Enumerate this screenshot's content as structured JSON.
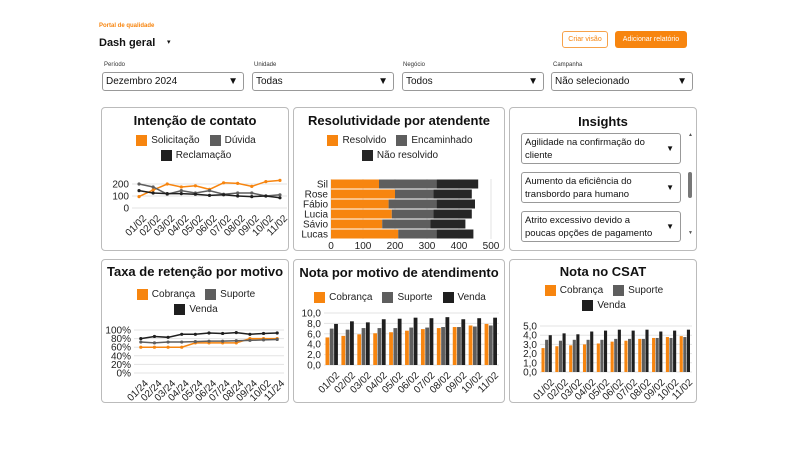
{
  "header": {
    "portal": "Portal de qualidade",
    "title": "Dash geral",
    "create_view": "Criar visão",
    "add_report": "Adicionar relatório"
  },
  "filters": [
    {
      "label": "Período",
      "value": "Dezembro 2024"
    },
    {
      "label": "Unidade",
      "value": "Todas"
    },
    {
      "label": "Negócio",
      "value": "Todos"
    },
    {
      "label": "Campanha",
      "value": "Não selecionado"
    }
  ],
  "colors": {
    "orange": "#f7850f",
    "gray": "#5e5e5e",
    "black": "#1f1f1f"
  },
  "insights": {
    "title": "Insights",
    "items": [
      "Agilidade na confirmação do cliente",
      "Aumento da eficiência do transbordo para humano",
      "Atrito excessivo devido a poucas opções de pagamento"
    ]
  },
  "chart_data": [
    {
      "title": "Intenção de contato",
      "type": "line",
      "categories": [
        "01/02",
        "02/02",
        "03/02",
        "04/02",
        "05/02",
        "06/02",
        "07/02",
        "08/02",
        "09/02",
        "10/02",
        "11/02"
      ],
      "ylim": [
        0,
        250
      ],
      "yticks": [
        "0",
        "100",
        "200"
      ],
      "grid": true,
      "series": [
        {
          "name": "Solicitação",
          "color": "#f7850f",
          "values": [
            95,
            150,
            200,
            175,
            185,
            155,
            210,
            205,
            180,
            220,
            230
          ]
        },
        {
          "name": "Dúvida",
          "color": "#5e5e5e",
          "values": [
            200,
            175,
            115,
            145,
            125,
            145,
            115,
            125,
            125,
            100,
            110
          ]
        },
        {
          "name": "Reclamação",
          "color": "#1f1f1f",
          "values": [
            145,
            125,
            120,
            120,
            115,
            105,
            110,
            100,
            95,
            100,
            85
          ]
        }
      ]
    },
    {
      "title": "Resolutividade por atendente",
      "type": "bar",
      "orientation": "horizontal",
      "stacked": true,
      "categories": [
        "Sil",
        "Rose",
        "Fábio",
        "Lucia",
        "Sávio",
        "Lucas"
      ],
      "xlim": [
        0,
        500
      ],
      "xticks": [
        "0",
        "100",
        "200",
        "300",
        "400",
        "500"
      ],
      "series": [
        {
          "name": "Resolvido",
          "color": "#f7850f",
          "values": [
            150,
            200,
            180,
            190,
            160,
            210
          ]
        },
        {
          "name": "Encaminhado",
          "color": "#5e5e5e",
          "values": [
            180,
            120,
            150,
            130,
            150,
            120
          ]
        },
        {
          "name": "Não resolvido",
          "color": "#262626",
          "values": [
            130,
            120,
            120,
            120,
            110,
            115
          ]
        }
      ]
    },
    {
      "title": "Taxa de retenção por motivo",
      "type": "line",
      "categories": [
        "01/24",
        "02/24",
        "03/24",
        "04/24",
        "05/24",
        "06/24",
        "07/24",
        "08/24",
        "09/24",
        "10/02",
        "11/24"
      ],
      "ylim": [
        0,
        100
      ],
      "yticks": [
        "0%",
        "20%",
        "40%",
        "60%",
        "80%",
        "100%"
      ],
      "grid": true,
      "series": [
        {
          "name": "Cobrança",
          "color": "#f7850f",
          "values": [
            60,
            60,
            60,
            60,
            70,
            70,
            70,
            70,
            80,
            80,
            80
          ]
        },
        {
          "name": "Suporte",
          "color": "#5e5e5e",
          "values": [
            72,
            70,
            72,
            72,
            73,
            74,
            74,
            75,
            76,
            77,
            78
          ]
        },
        {
          "name": "Venda",
          "color": "#1f1f1f",
          "values": [
            80,
            85,
            83,
            90,
            90,
            93,
            92,
            94,
            90,
            92,
            93
          ]
        }
      ]
    },
    {
      "title": "Nota por motivo de atendimento",
      "type": "bar",
      "categories": [
        "01/02",
        "02/02",
        "03/02",
        "04/02",
        "05/02",
        "06/02",
        "07/02",
        "08/02",
        "09/02",
        "10/02",
        "11/02"
      ],
      "ylim": [
        0,
        10
      ],
      "yticks": [
        "0,0",
        "2,0",
        "4,0",
        "6,0",
        "8,0",
        "10,0"
      ],
      "grid": true,
      "series": [
        {
          "name": "Cobrança",
          "color": "#f7850f",
          "values": [
            5.3,
            5.6,
            5.9,
            6.1,
            6.3,
            6.6,
            6.9,
            7.1,
            7.3,
            7.6,
            7.9
          ]
        },
        {
          "name": "Suporte",
          "color": "#5e5e5e",
          "values": [
            7.0,
            6.8,
            7.1,
            7.1,
            7.1,
            7.2,
            7.2,
            7.3,
            7.3,
            7.4,
            7.6
          ]
        },
        {
          "name": "Venda",
          "color": "#1f1f1f",
          "values": [
            7.9,
            8.4,
            8.2,
            8.8,
            8.9,
            9.1,
            9.0,
            9.2,
            8.8,
            9.0,
            9.1
          ]
        }
      ]
    },
    {
      "title": "Nota no CSAT",
      "type": "bar",
      "categories": [
        "01/02",
        "02/02",
        "03/02",
        "04/02",
        "05/02",
        "06/02",
        "07/02",
        "08/02",
        "09/02",
        "10/02",
        "11/02"
      ],
      "ylim": [
        0,
        5
      ],
      "yticks": [
        "0,0",
        "1,0",
        "2,0",
        "3,0",
        "4,0",
        "5,0"
      ],
      "grid": true,
      "series": [
        {
          "name": "Cobrança",
          "color": "#f7850f",
          "values": [
            2.6,
            2.8,
            2.9,
            3.0,
            3.1,
            3.3,
            3.4,
            3.6,
            3.7,
            3.8,
            3.9
          ]
        },
        {
          "name": "Suporte",
          "color": "#5e5e5e",
          "values": [
            3.5,
            3.4,
            3.5,
            3.5,
            3.5,
            3.6,
            3.6,
            3.6,
            3.7,
            3.7,
            3.8
          ]
        },
        {
          "name": "Venda",
          "color": "#1f1f1f",
          "values": [
            4.0,
            4.2,
            4.1,
            4.4,
            4.5,
            4.6,
            4.5,
            4.6,
            4.4,
            4.5,
            4.6
          ]
        }
      ]
    }
  ]
}
